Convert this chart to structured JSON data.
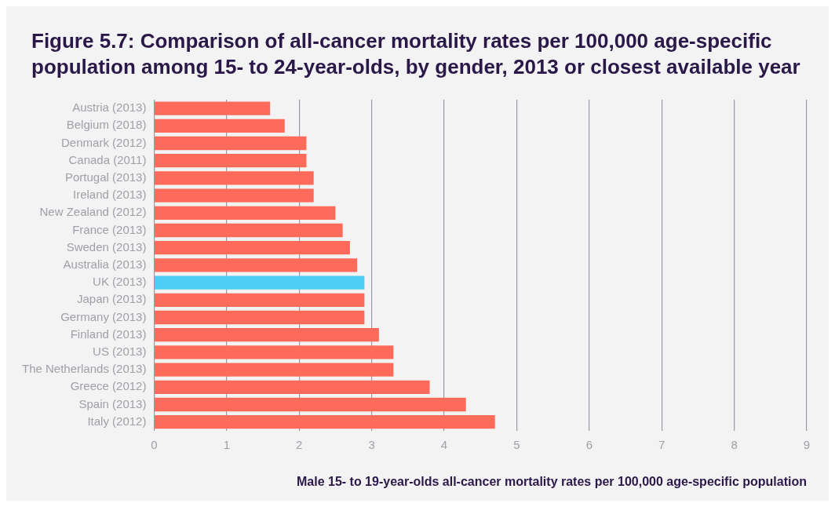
{
  "chart_data": {
    "type": "bar",
    "orientation": "horizontal",
    "title": "Figure 5.7: Comparison of all-cancer mortality rates per 100,000 age-specific population among 15- to 24-year-olds, by gender, 2013 or closest available year",
    "xlabel": "Male 15- to 19-year-olds all-cancer mortality rates per 100,000 age-specific population",
    "categories": [
      "Austria (2013)",
      "Belgium (2018)",
      "Denmark (2012)",
      "Canada (2011)",
      "Portugal (2013)",
      "Ireland (2013)",
      "New Zealand (2012)",
      "France (2013)",
      "Sweden (2013)",
      "Australia (2013)",
      "UK (2013)",
      "Japan (2013)",
      "Germany (2013)",
      "Finland (2013)",
      "US (2013)",
      "The Netherlands (2013)",
      "Greece (2012)",
      "Spain (2013)",
      "Italy (2012)"
    ],
    "values": [
      1.6,
      1.8,
      2.1,
      2.1,
      2.2,
      2.2,
      2.5,
      2.6,
      2.7,
      2.8,
      2.9,
      2.9,
      2.9,
      3.1,
      3.3,
      3.3,
      3.8,
      4.3,
      4.7
    ],
    "colors": [
      "#ff6b5b",
      "#ff6b5b",
      "#ff6b5b",
      "#ff6b5b",
      "#ff6b5b",
      "#ff6b5b",
      "#ff6b5b",
      "#ff6b5b",
      "#ff6b5b",
      "#ff6b5b",
      "#4ecdf2",
      "#ff6b5b",
      "#ff6b5b",
      "#ff6b5b",
      "#ff6b5b",
      "#ff6b5b",
      "#ff6b5b",
      "#ff6b5b",
      "#ff6b5b"
    ],
    "xlim": [
      0,
      9
    ],
    "xticks": [
      0,
      1,
      2,
      3,
      4,
      5,
      6,
      7,
      8,
      9
    ],
    "grid": "x",
    "legend": false
  }
}
